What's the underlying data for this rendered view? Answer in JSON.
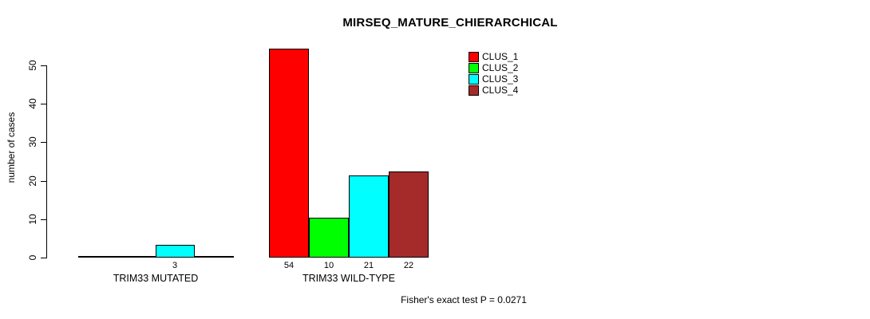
{
  "title": "MIRSEQ_MATURE_CHIERARCHICAL",
  "footnote": "Fisher's exact test P = 0.0271",
  "colors": {
    "clus_1": "#FF0000",
    "clus_2": "#00FF00",
    "clus_3": "#00FFFF",
    "clus_4": "#A52A2A",
    "axis": "#000000",
    "background": "#FFFFFF"
  },
  "legend": {
    "position": "top-right",
    "items": [
      {
        "label": "CLUS_1",
        "color": "#FF0000"
      },
      {
        "label": "CLUS_2",
        "color": "#00FF00"
      },
      {
        "label": "CLUS_3",
        "color": "#00FFFF"
      },
      {
        "label": "CLUS_4",
        "color": "#A52A2A"
      }
    ]
  },
  "chart_data": {
    "type": "bar",
    "title": "MIRSEQ_MATURE_CHIERARCHICAL",
    "xlabel": "",
    "ylabel": "number of cases",
    "ylim": [
      0,
      50
    ],
    "yticks": [
      0,
      10,
      20,
      30,
      40,
      50
    ],
    "grid": false,
    "legend_position": "top-right",
    "categories": [
      "TRIM33 MUTATED",
      "TRIM33 WILD-TYPE"
    ],
    "series": [
      {
        "name": "CLUS_1",
        "color": "#FF0000",
        "values": [
          0,
          54
        ]
      },
      {
        "name": "CLUS_2",
        "color": "#00FF00",
        "values": [
          0,
          10
        ]
      },
      {
        "name": "CLUS_3",
        "color": "#00FFFF",
        "values": [
          3,
          21
        ]
      },
      {
        "name": "CLUS_4",
        "color": "#A52A2A",
        "values": [
          0,
          22
        ]
      }
    ],
    "bar_value_labels": {
      "group_1": [
        "3"
      ],
      "group_2": [
        "54",
        "10",
        "21",
        "22"
      ],
      "note": "labels shown only for non-zero bars"
    },
    "annotation": "Fisher's exact test P = 0.0271"
  }
}
